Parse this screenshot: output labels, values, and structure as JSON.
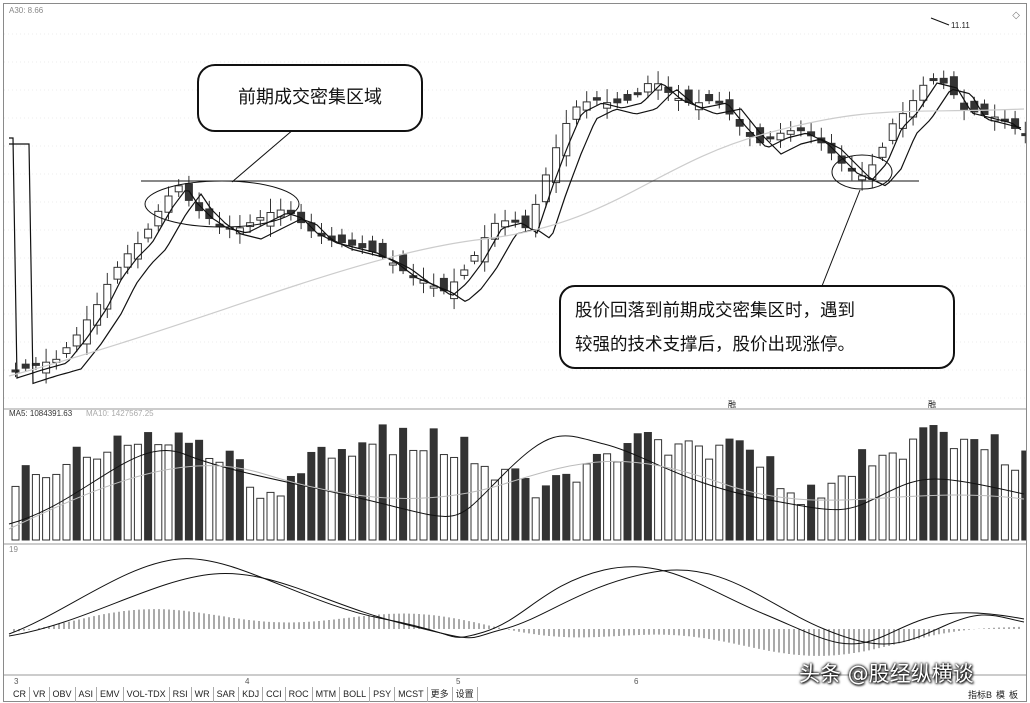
{
  "price_header": "A30: 8.66",
  "high_label": "11.11",
  "vol_header_ma5": "MA5: 1084391.63",
  "vol_header_ma10": "MA10: 1427567.25",
  "macd_header": "19",
  "annotations": {
    "area_label": "前期成交密集区域",
    "support_line1": "股价回落到前期成交密集区时，遇到",
    "support_line2": "较强的技术支撑后，股价出现涨停。"
  },
  "date_marks": [
    "3",
    "4",
    "5",
    "6"
  ],
  "event_marks": [
    "融",
    "融"
  ],
  "indicator_tabs": [
    "CR",
    "VR",
    "OBV",
    "ASI",
    "EMV",
    "VOL-TDX",
    "RSI",
    "WR",
    "SAR",
    "KDJ",
    "CCI",
    "ROC",
    "MTM",
    "BOLL",
    "PSY",
    "MCST",
    "更多",
    "设置"
  ],
  "right_tabs": [
    "指标B",
    "模",
    "板"
  ],
  "watermark": "头条 @股经纵横谈",
  "colors": {
    "down": "#333333",
    "up_fill": "#ffffff",
    "line": "#222222",
    "ma_long": "#c8c8c8"
  }
}
